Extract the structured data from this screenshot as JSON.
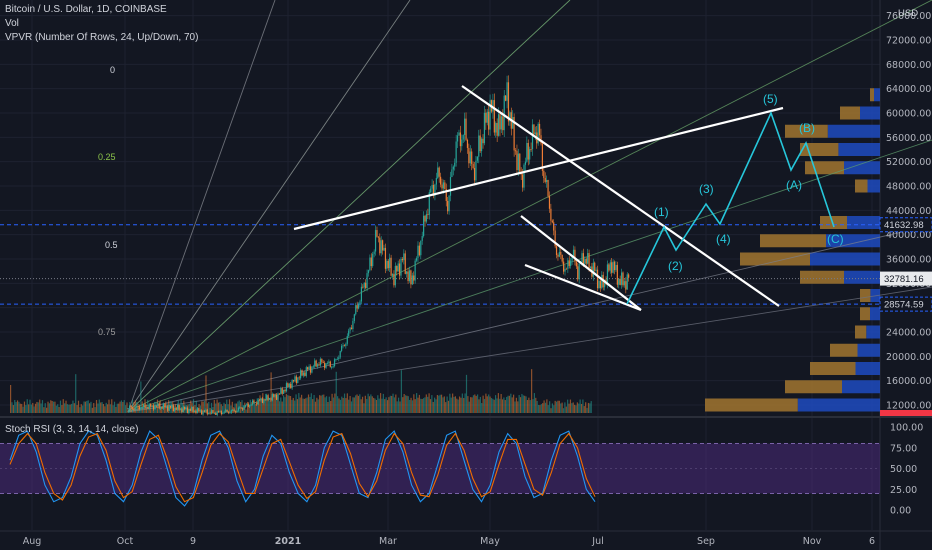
{
  "legend": {
    "symbol": "Bitcoin / U.S. Dollar, 1D, COINBASE",
    "vol": "Vol",
    "vpvr": "VPVR (Number Of Rows, 24, Up/Down, 70)",
    "stoch": "Stoch RSI (3, 3, 14, 14, close)"
  },
  "currency": "USD",
  "colors": {
    "background": "#131722",
    "up": "#26a69a",
    "down": "#ef7d35",
    "wave": "#26c6da",
    "trend": "#ffffff",
    "price_line_blue": "#2962ff",
    "last_price_tag": "#e8eaed",
    "stoch_k": "#2196f3",
    "stoch_d": "#ef6c00",
    "stoch_band": "#4a2a7a",
    "vpvr_up": "#1e4bbf",
    "vpvr_down": "#a2752f",
    "red_tag": "#f23645"
  },
  "chart_data": [
    {
      "type": "candlestick",
      "title": "Bitcoin / U.S. Dollar, 1D, COINBASE",
      "x_ticks": [
        "Aug",
        "Oct",
        "9",
        "2021",
        "Mar",
        "May",
        "Jul",
        "Sep",
        "Nov",
        "6"
      ],
      "y_ticks": [
        12000,
        16000,
        20000,
        24000,
        28000,
        32000,
        36000,
        40000,
        44000,
        48000,
        52000,
        56000,
        60000,
        64000,
        68000,
        72000,
        76000
      ],
      "y_tick_labels": [
        "12000.00",
        "16000.00",
        "20000.00",
        "24000.00",
        "28000.00",
        "32000.00",
        "36000.00",
        "40000.00",
        "44000.00",
        "48000.00",
        "52000.00",
        "56000.00",
        "60000.00",
        "64000.00",
        "68000.00",
        "72000.00",
        "76000.00"
      ],
      "ylim": [
        10000,
        79500
      ],
      "price_tags": [
        {
          "label": "41632.98",
          "value": 41632.98,
          "style": "level"
        },
        {
          "label": "32781.16",
          "value": 32781.16,
          "style": "last"
        },
        {
          "label": "28574.59",
          "value": 28574.59,
          "style": "level"
        }
      ],
      "fib_fan_labels": [
        "0",
        "0.25",
        "0.5",
        "0.75"
      ],
      "elliott_waves": [
        "(1)",
        "(2)",
        "(3)",
        "(4)",
        "(5)",
        "(A)",
        "(B)",
        "(C)"
      ],
      "price_path": [
        {
          "t": 0,
          "p": 11500
        },
        {
          "t": 20,
          "p": 11800
        },
        {
          "t": 40,
          "p": 11300
        },
        {
          "t": 60,
          "p": 10700
        },
        {
          "t": 75,
          "p": 11000
        },
        {
          "t": 90,
          "p": 12500
        },
        {
          "t": 105,
          "p": 13500
        },
        {
          "t": 115,
          "p": 15500
        },
        {
          "t": 125,
          "p": 17500
        },
        {
          "t": 135,
          "p": 19000
        },
        {
          "t": 145,
          "p": 18500
        },
        {
          "t": 155,
          "p": 23000
        },
        {
          "t": 163,
          "p": 29000
        },
        {
          "t": 170,
          "p": 34000
        },
        {
          "t": 176,
          "p": 40000
        },
        {
          "t": 182,
          "p": 36000
        },
        {
          "t": 188,
          "p": 33000
        },
        {
          "t": 194,
          "p": 36000
        },
        {
          "t": 200,
          "p": 32000
        },
        {
          "t": 206,
          "p": 38000
        },
        {
          "t": 214,
          "p": 47000
        },
        {
          "t": 220,
          "p": 50000
        },
        {
          "t": 226,
          "p": 45000
        },
        {
          "t": 232,
          "p": 55000
        },
        {
          "t": 238,
          "p": 57000
        },
        {
          "t": 244,
          "p": 50000
        },
        {
          "t": 250,
          "p": 56000
        },
        {
          "t": 256,
          "p": 61000
        },
        {
          "t": 262,
          "p": 57000
        },
        {
          "t": 268,
          "p": 63000
        },
        {
          "t": 273,
          "p": 55000
        },
        {
          "t": 278,
          "p": 49000
        },
        {
          "t": 282,
          "p": 53000
        },
        {
          "t": 286,
          "p": 56000
        },
        {
          "t": 290,
          "p": 57500
        },
        {
          "t": 294,
          "p": 50000
        },
        {
          "t": 298,
          "p": 45000
        },
        {
          "t": 302,
          "p": 38000
        },
        {
          "t": 306,
          "p": 36000
        },
        {
          "t": 310,
          "p": 34000
        },
        {
          "t": 314,
          "p": 37000
        },
        {
          "t": 318,
          "p": 34000
        },
        {
          "t": 322,
          "p": 36500
        },
        {
          "t": 326,
          "p": 35000
        },
        {
          "t": 330,
          "p": 34000
        },
        {
          "t": 334,
          "p": 31500
        },
        {
          "t": 338,
          "p": 33000
        },
        {
          "t": 342,
          "p": 35500
        },
        {
          "t": 346,
          "p": 33000
        },
        {
          "t": 350,
          "p": 32000
        },
        {
          "t": 354,
          "p": 32781
        }
      ],
      "projection_path": [
        {
          "t": 353,
          "p": 28574
        },
        {
          "t": 375,
          "p": 41600
        },
        {
          "t": 382,
          "p": 36500
        },
        {
          "t": 396,
          "p": 45000
        },
        {
          "t": 405,
          "p": 41800
        },
        {
          "t": 434,
          "p": 60000
        },
        {
          "t": 446,
          "p": 48500
        },
        {
          "t": 455,
          "p": 55000
        },
        {
          "t": 470,
          "p": 41600
        }
      ],
      "volume_profile": [
        {
          "price": 12000,
          "up": 0.47,
          "down": 0.53
        },
        {
          "price": 15000,
          "up": 0.4,
          "down": 0.6
        },
        {
          "price": 18000,
          "up": 0.35,
          "down": 0.65
        },
        {
          "price": 21000,
          "up": 0.45,
          "down": 0.55
        },
        {
          "price": 24000,
          "up": 0.55,
          "down": 0.45
        },
        {
          "price": 27000,
          "up": 0.5,
          "down": 0.5
        },
        {
          "price": 30000,
          "up": 0.48,
          "down": 0.52
        },
        {
          "price": 33000,
          "up": 0.45,
          "down": 0.55
        },
        {
          "price": 36000,
          "up": 0.5,
          "down": 0.5
        },
        {
          "price": 39000,
          "up": 0.45,
          "down": 0.55
        },
        {
          "price": 42000,
          "up": 0.55,
          "down": 0.45
        },
        {
          "price": 48000,
          "up": 0.5,
          "down": 0.5
        },
        {
          "price": 51000,
          "up": 0.48,
          "down": 0.52
        },
        {
          "price": 54000,
          "up": 0.52,
          "down": 0.48
        },
        {
          "price": 57000,
          "up": 0.55,
          "down": 0.45
        },
        {
          "price": 60000,
          "up": 0.5,
          "down": 0.5
        },
        {
          "price": 63000,
          "up": 0.6,
          "down": 0.4
        }
      ]
    },
    {
      "type": "line",
      "title": "Stoch RSI (3, 3, 14, 14, close)",
      "y_ticks": [
        0,
        25,
        50,
        75,
        100
      ],
      "y_tick_labels": [
        "0.00",
        "25.00",
        "50.00",
        "75.00",
        "100.00"
      ],
      "ylim": [
        -8,
        108
      ],
      "band": [
        20,
        80
      ],
      "series": [
        {
          "values": [
            60,
            90,
            95,
            70,
            30,
            10,
            15,
            40,
            80,
            95,
            90,
            60,
            20,
            10,
            30,
            70,
            95,
            85,
            50,
            15,
            5,
            20,
            60,
            90,
            95,
            75,
            35,
            10,
            25,
            65,
            90,
            80,
            45,
            20,
            10,
            30,
            75,
            95,
            90,
            55,
            20,
            15,
            45,
            85,
            95,
            70,
            30,
            10,
            20,
            55,
            90,
            95,
            60,
            25,
            10,
            30,
            70,
            92,
            80,
            40,
            15,
            20,
            60,
            90,
            95,
            65,
            25,
            10
          ]
        },
        {
          "values": [
            55,
            80,
            92,
            80,
            45,
            20,
            12,
            30,
            65,
            88,
            92,
            72,
            35,
            15,
            22,
            55,
            85,
            90,
            62,
            28,
            10,
            15,
            45,
            78,
            92,
            82,
            50,
            20,
            20,
            50,
            80,
            85,
            58,
            30,
            14,
            22,
            60,
            88,
            92,
            68,
            32,
            16,
            35,
            72,
            92,
            80,
            45,
            18,
            16,
            42,
            78,
            92,
            72,
            38,
            16,
            22,
            55,
            85,
            85,
            55,
            25,
            18,
            45,
            80,
            92,
            75,
            38,
            16
          ]
        }
      ]
    }
  ]
}
